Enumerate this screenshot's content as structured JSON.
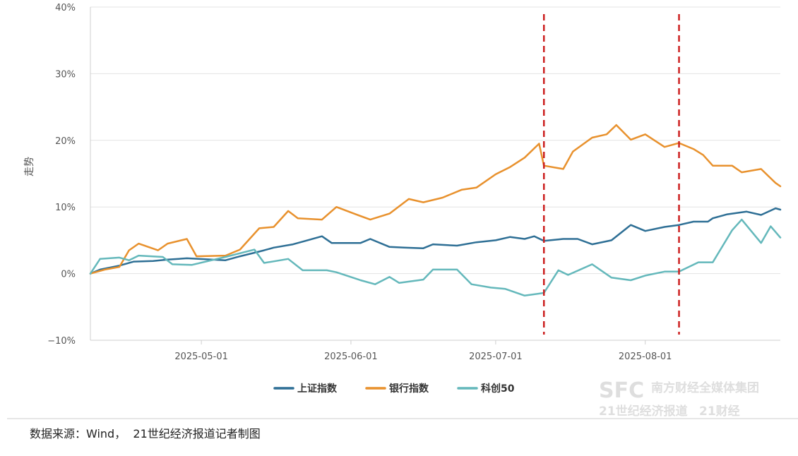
{
  "chart_data": {
    "type": "line",
    "ylabel": "走势",
    "ylim": [
      -10,
      40
    ],
    "y_ticks": [
      "40%",
      "30%",
      "20%",
      "10%",
      "0%",
      "−10%"
    ],
    "x_ticks": [
      "2025-05-01",
      "2025-06-01",
      "2025-07-01",
      "2025-08-01"
    ],
    "x_range": [
      "2025-04-08",
      "2025-08-29"
    ],
    "grid": "horizontal",
    "legend_position": "bottom",
    "vertical_markers": [
      "2025-07-11",
      "2025-08-08"
    ],
    "series": [
      {
        "name": "上证指数",
        "color": "#2e6f95",
        "points": [
          [
            "2025-04-08",
            0.0
          ],
          [
            "2025-04-10",
            0.6
          ],
          [
            "2025-04-14",
            1.2
          ],
          [
            "2025-04-17",
            1.8
          ],
          [
            "2025-04-21",
            1.9
          ],
          [
            "2025-04-24",
            2.1
          ],
          [
            "2025-04-28",
            2.3
          ],
          [
            "2025-05-06",
            2.0
          ],
          [
            "2025-05-09",
            2.6
          ],
          [
            "2025-05-14",
            3.5
          ],
          [
            "2025-05-16",
            3.9
          ],
          [
            "2025-05-20",
            4.4
          ],
          [
            "2025-05-23",
            5.0
          ],
          [
            "2025-05-26",
            5.6
          ],
          [
            "2025-05-28",
            4.6
          ],
          [
            "2025-06-03",
            4.6
          ],
          [
            "2025-06-05",
            5.2
          ],
          [
            "2025-06-09",
            4.0
          ],
          [
            "2025-06-12",
            3.9
          ],
          [
            "2025-06-16",
            3.8
          ],
          [
            "2025-06-18",
            4.4
          ],
          [
            "2025-06-23",
            4.2
          ],
          [
            "2025-06-27",
            4.7
          ],
          [
            "2025-07-01",
            5.0
          ],
          [
            "2025-07-04",
            5.5
          ],
          [
            "2025-07-07",
            5.2
          ],
          [
            "2025-07-09",
            5.6
          ],
          [
            "2025-07-11",
            4.9
          ],
          [
            "2025-07-15",
            5.2
          ],
          [
            "2025-07-18",
            5.2
          ],
          [
            "2025-07-21",
            4.4
          ],
          [
            "2025-07-25",
            5.0
          ],
          [
            "2025-07-29",
            7.3
          ],
          [
            "2025-08-01",
            6.4
          ],
          [
            "2025-08-05",
            7.0
          ],
          [
            "2025-08-08",
            7.3
          ],
          [
            "2025-08-11",
            7.8
          ],
          [
            "2025-08-14",
            7.8
          ],
          [
            "2025-08-15",
            8.3
          ],
          [
            "2025-08-18",
            8.9
          ],
          [
            "2025-08-22",
            9.3
          ],
          [
            "2025-08-25",
            8.8
          ],
          [
            "2025-08-28",
            9.8
          ],
          [
            "2025-08-29",
            9.6
          ]
        ]
      },
      {
        "name": "银行指数",
        "color": "#e8912d",
        "points": [
          [
            "2025-04-08",
            0.0
          ],
          [
            "2025-04-11",
            0.6
          ],
          [
            "2025-04-14",
            1.0
          ],
          [
            "2025-04-16",
            3.5
          ],
          [
            "2025-04-18",
            4.5
          ],
          [
            "2025-04-22",
            3.5
          ],
          [
            "2025-04-24",
            4.5
          ],
          [
            "2025-04-28",
            5.2
          ],
          [
            "2025-04-30",
            2.6
          ],
          [
            "2025-05-06",
            2.7
          ],
          [
            "2025-05-09",
            3.6
          ],
          [
            "2025-05-13",
            6.8
          ],
          [
            "2025-05-16",
            7.0
          ],
          [
            "2025-05-19",
            9.4
          ],
          [
            "2025-05-21",
            8.3
          ],
          [
            "2025-05-26",
            8.1
          ],
          [
            "2025-05-29",
            10.0
          ],
          [
            "2025-06-02",
            8.9
          ],
          [
            "2025-06-05",
            8.1
          ],
          [
            "2025-06-09",
            9.0
          ],
          [
            "2025-06-13",
            11.2
          ],
          [
            "2025-06-16",
            10.7
          ],
          [
            "2025-06-20",
            11.4
          ],
          [
            "2025-06-24",
            12.6
          ],
          [
            "2025-06-27",
            12.9
          ],
          [
            "2025-07-01",
            14.9
          ],
          [
            "2025-07-04",
            16.0
          ],
          [
            "2025-07-07",
            17.4
          ],
          [
            "2025-07-10",
            19.5
          ],
          [
            "2025-07-11",
            16.2
          ],
          [
            "2025-07-15",
            15.7
          ],
          [
            "2025-07-17",
            18.3
          ],
          [
            "2025-07-21",
            20.4
          ],
          [
            "2025-07-24",
            20.9
          ],
          [
            "2025-07-26",
            22.3
          ],
          [
            "2025-07-29",
            20.1
          ],
          [
            "2025-08-01",
            20.9
          ],
          [
            "2025-08-05",
            19.0
          ],
          [
            "2025-08-08",
            19.6
          ],
          [
            "2025-08-11",
            18.7
          ],
          [
            "2025-08-13",
            17.8
          ],
          [
            "2025-08-15",
            16.2
          ],
          [
            "2025-08-19",
            16.2
          ],
          [
            "2025-08-21",
            15.2
          ],
          [
            "2025-08-25",
            15.7
          ],
          [
            "2025-08-28",
            13.6
          ],
          [
            "2025-08-29",
            13.1
          ]
        ]
      },
      {
        "name": "科创50",
        "color": "#64b8bb",
        "points": [
          [
            "2025-04-08",
            0.0
          ],
          [
            "2025-04-10",
            2.2
          ],
          [
            "2025-04-14",
            2.4
          ],
          [
            "2025-04-16",
            2.0
          ],
          [
            "2025-04-18",
            2.7
          ],
          [
            "2025-04-23",
            2.5
          ],
          [
            "2025-04-25",
            1.4
          ],
          [
            "2025-04-29",
            1.3
          ],
          [
            "2025-05-06",
            2.5
          ],
          [
            "2025-05-12",
            3.6
          ],
          [
            "2025-05-14",
            1.6
          ],
          [
            "2025-05-19",
            2.2
          ],
          [
            "2025-05-22",
            0.5
          ],
          [
            "2025-05-27",
            0.5
          ],
          [
            "2025-05-29",
            0.2
          ],
          [
            "2025-06-03",
            -1.0
          ],
          [
            "2025-06-06",
            -1.6
          ],
          [
            "2025-06-09",
            -0.5
          ],
          [
            "2025-06-11",
            -1.4
          ],
          [
            "2025-06-16",
            -0.9
          ],
          [
            "2025-06-18",
            0.6
          ],
          [
            "2025-06-23",
            0.6
          ],
          [
            "2025-06-26",
            -1.6
          ],
          [
            "2025-06-30",
            -2.1
          ],
          [
            "2025-07-03",
            -2.3
          ],
          [
            "2025-07-07",
            -3.3
          ],
          [
            "2025-07-11",
            -2.9
          ],
          [
            "2025-07-14",
            0.5
          ],
          [
            "2025-07-16",
            -0.2
          ],
          [
            "2025-07-21",
            1.4
          ],
          [
            "2025-07-25",
            -0.6
          ],
          [
            "2025-07-29",
            -1.0
          ],
          [
            "2025-08-01",
            -0.3
          ],
          [
            "2025-08-05",
            0.3
          ],
          [
            "2025-08-08",
            0.3
          ],
          [
            "2025-08-12",
            1.7
          ],
          [
            "2025-08-15",
            1.7
          ],
          [
            "2025-08-19",
            6.5
          ],
          [
            "2025-08-21",
            8.1
          ],
          [
            "2025-08-25",
            4.6
          ],
          [
            "2025-08-27",
            7.1
          ],
          [
            "2025-08-29",
            5.4
          ]
        ]
      }
    ]
  },
  "watermark": {
    "logo": "SFC",
    "line1": "南方财经全媒体集团",
    "line2": "21世纪经济报道",
    "line3": "21财经"
  },
  "footer": {
    "source": "数据来源：Wind，  21世纪经济报道记者制图"
  }
}
